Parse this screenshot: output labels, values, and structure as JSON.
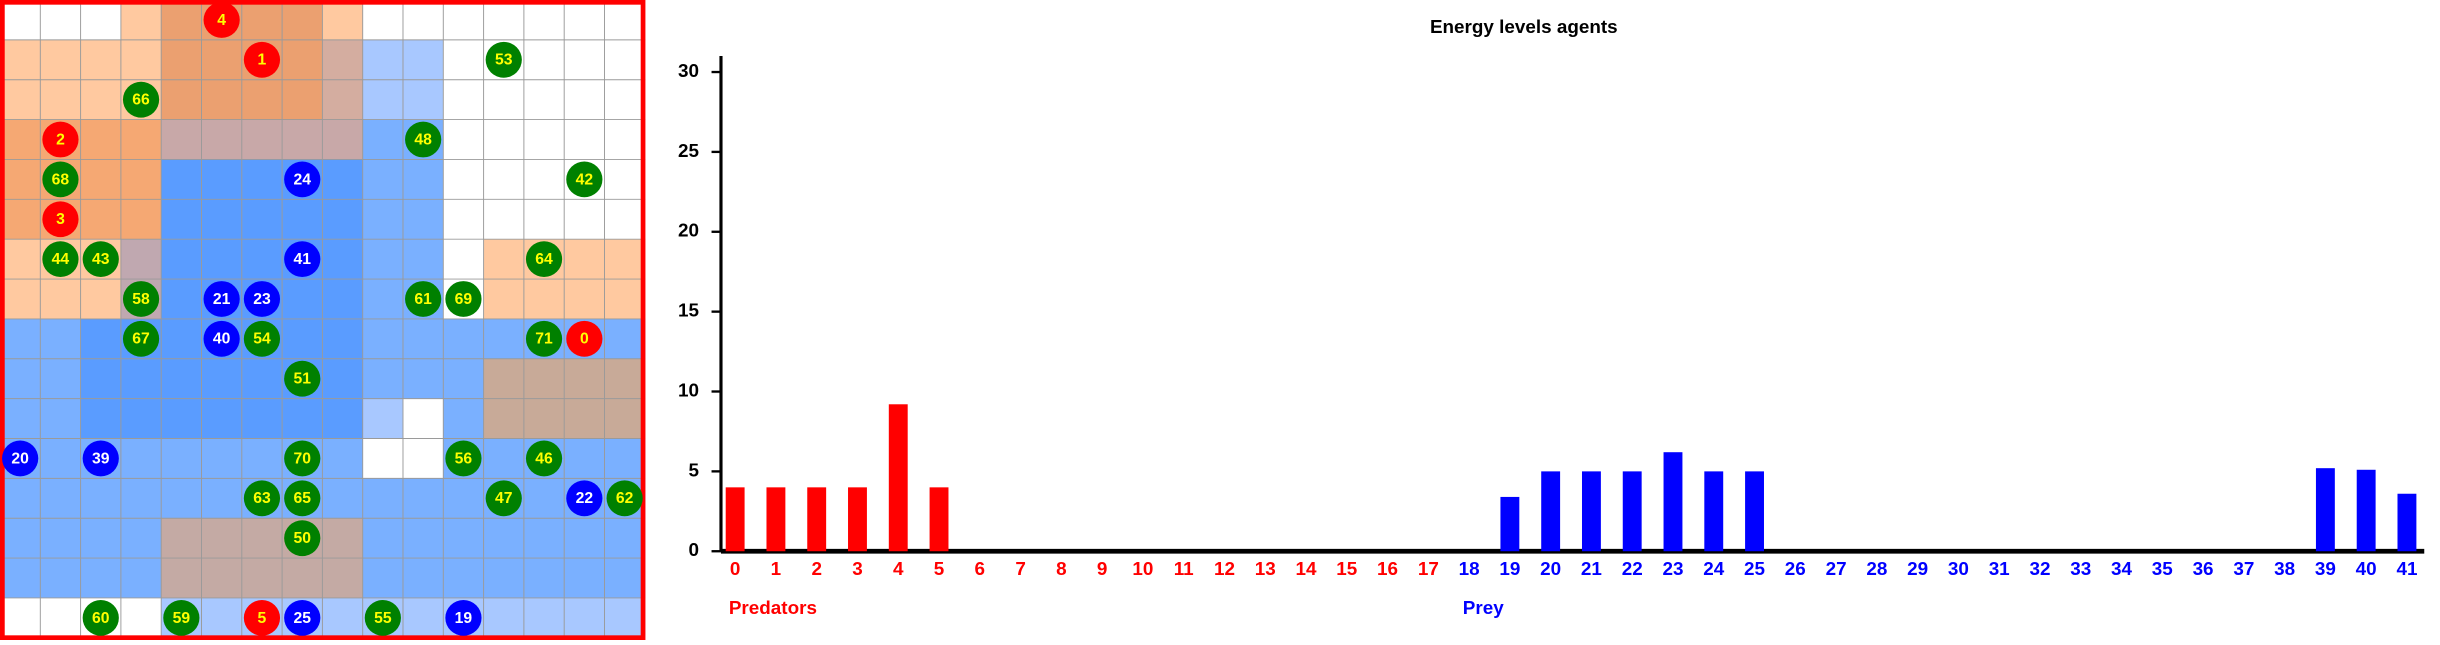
{
  "world": {
    "agents": [
      {
        "label": "4",
        "kind": "predator"
      },
      {
        "label": "1",
        "kind": "predator"
      },
      {
        "label": "53",
        "kind": "plant"
      },
      {
        "label": "66",
        "kind": "plant"
      },
      {
        "label": "2",
        "kind": "predator"
      },
      {
        "label": "48",
        "kind": "plant"
      },
      {
        "label": "68",
        "kind": "plant"
      },
      {
        "label": "24",
        "kind": "prey"
      },
      {
        "label": "42",
        "kind": "plant"
      },
      {
        "label": "3",
        "kind": "predator"
      },
      {
        "label": "44",
        "kind": "plant"
      },
      {
        "label": "43",
        "kind": "plant"
      },
      {
        "label": "41",
        "kind": "prey"
      },
      {
        "label": "64",
        "kind": "plant"
      },
      {
        "label": "58",
        "kind": "plant"
      },
      {
        "label": "21",
        "kind": "prey"
      },
      {
        "label": "23",
        "kind": "prey"
      },
      {
        "label": "61",
        "kind": "plant"
      },
      {
        "label": "69",
        "kind": "plant"
      },
      {
        "label": "67",
        "kind": "plant"
      },
      {
        "label": "40",
        "kind": "prey"
      },
      {
        "label": "54",
        "kind": "plant"
      },
      {
        "label": "71",
        "kind": "plant"
      },
      {
        "label": "0",
        "kind": "predator"
      },
      {
        "label": "51",
        "kind": "plant"
      },
      {
        "label": "20",
        "kind": "prey"
      },
      {
        "label": "39",
        "kind": "prey"
      },
      {
        "label": "70",
        "kind": "plant"
      },
      {
        "label": "56",
        "kind": "plant"
      },
      {
        "label": "46",
        "kind": "plant"
      },
      {
        "label": "63",
        "kind": "plant"
      },
      {
        "label": "65",
        "kind": "plant"
      },
      {
        "label": "47",
        "kind": "plant"
      },
      {
        "label": "22",
        "kind": "prey"
      },
      {
        "label": "62",
        "kind": "plant"
      },
      {
        "label": "50",
        "kind": "plant"
      },
      {
        "label": "60",
        "kind": "plant"
      },
      {
        "label": "59",
        "kind": "plant"
      },
      {
        "label": "5",
        "kind": "predator"
      },
      {
        "label": "25",
        "kind": "prey"
      },
      {
        "label": "55",
        "kind": "plant"
      },
      {
        "label": "19",
        "kind": "prey"
      }
    ]
  },
  "chart_data": {
    "type": "bar",
    "title": "Energy levels agents",
    "categories": [
      "0",
      "1",
      "2",
      "3",
      "4",
      "5",
      "6",
      "7",
      "8",
      "9",
      "10",
      "11",
      "12",
      "13",
      "14",
      "15",
      "16",
      "17",
      "18",
      "19",
      "20",
      "21",
      "22",
      "23",
      "24",
      "25",
      "26",
      "27",
      "28",
      "29",
      "30",
      "31",
      "32",
      "33",
      "34",
      "35",
      "36",
      "37",
      "38",
      "39",
      "40",
      "41"
    ],
    "series": [
      {
        "name": "Predators",
        "color": "#ff0000",
        "values": [
          4,
          4,
          4,
          4,
          9.2,
          4,
          0,
          0,
          0,
          0,
          0,
          0,
          0,
          0,
          0,
          0,
          0,
          0,
          null,
          null,
          null,
          null,
          null,
          null,
          null,
          null,
          null,
          null,
          null,
          null,
          null,
          null,
          null,
          null,
          null,
          null,
          null,
          null,
          null,
          null,
          null,
          null
        ]
      },
      {
        "name": "Prey",
        "color": "#0000ff",
        "values": [
          null,
          null,
          null,
          null,
          null,
          null,
          null,
          null,
          null,
          null,
          null,
          null,
          null,
          null,
          null,
          null,
          null,
          null,
          0,
          3.4,
          5,
          5,
          5,
          6.2,
          5,
          5,
          0,
          0,
          0,
          0,
          0,
          0,
          0,
          0,
          0,
          0,
          0,
          0,
          0,
          5.2,
          5.1,
          3.6
        ]
      }
    ],
    "ylim": [
      0,
      31
    ],
    "yticks": [
      0,
      5,
      10,
      15,
      20,
      25,
      30
    ]
  }
}
